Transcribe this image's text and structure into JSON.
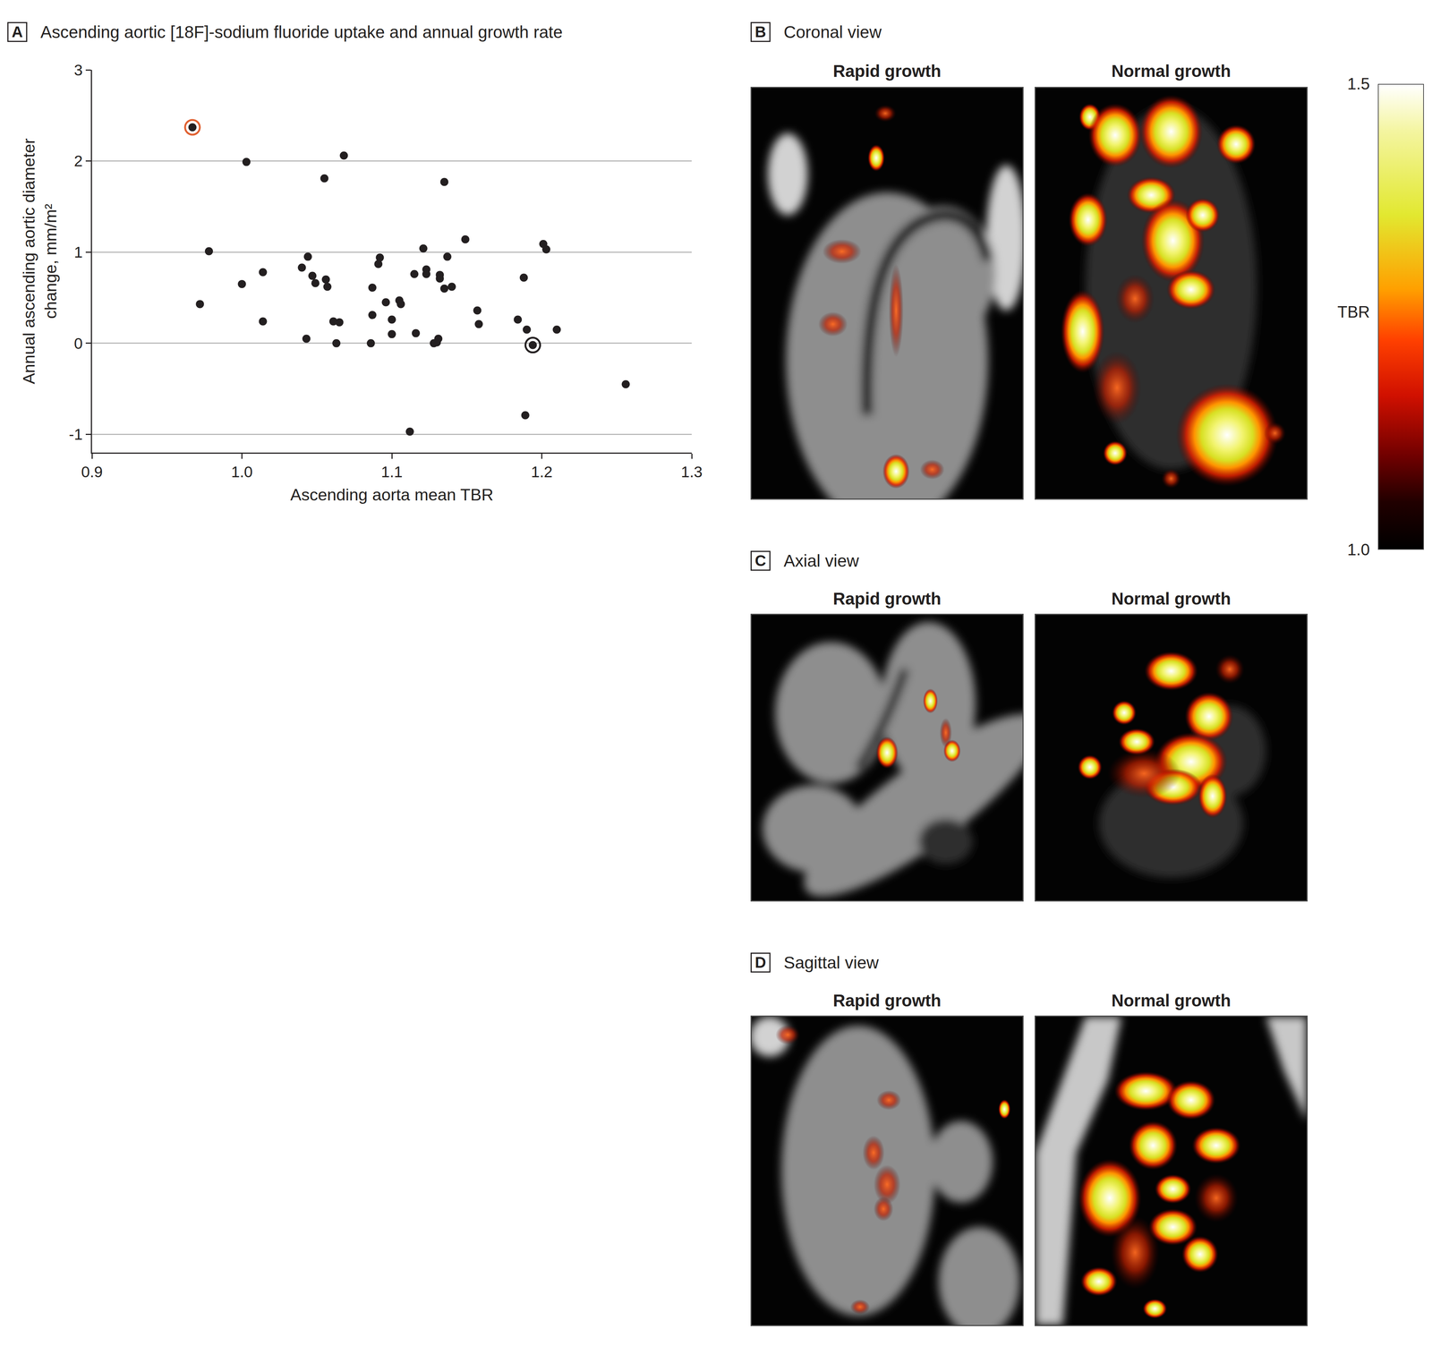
{
  "chart_data": {
    "type": "scatter",
    "panel": "A",
    "title": "Ascending aortic [18F]-sodium fluoride uptake and annual growth rate",
    "x_label": "Ascending aorta mean TBR",
    "y_label": "Annual ascending aortic diameter change, mm/m²",
    "series": [
      {
        "color": "#231f20",
        "marker": "circle",
        "x": [
          0.967,
          1.003,
          1.068,
          1.055,
          1.135,
          0.978,
          0.972,
          1.0,
          1.014,
          1.014,
          1.04,
          1.044,
          1.047,
          1.049,
          1.056,
          1.057,
          1.043,
          1.061,
          1.065,
          1.063,
          1.086,
          1.087,
          1.087,
          1.091,
          1.092,
          1.096,
          1.1,
          1.1,
          1.105,
          1.106,
          1.112,
          1.115,
          1.116,
          1.121,
          1.123,
          1.123,
          1.128,
          1.13,
          1.131,
          1.132,
          1.132,
          1.135,
          1.137,
          1.14,
          1.149,
          1.157,
          1.158,
          1.184,
          1.188,
          1.19,
          1.189,
          1.194,
          1.201,
          1.203,
          1.21,
          1.256
        ],
        "values": [
          2.37,
          1.99,
          2.06,
          1.81,
          1.77,
          1.01,
          0.43,
          0.65,
          0.78,
          0.24,
          0.83,
          0.95,
          0.74,
          0.66,
          0.7,
          0.62,
          0.05,
          0.24,
          0.23,
          0.0,
          0.0,
          0.31,
          0.61,
          0.87,
          0.94,
          0.45,
          0.26,
          0.1,
          0.47,
          0.43,
          -0.97,
          0.76,
          0.11,
          1.04,
          0.81,
          0.76,
          0.0,
          0.01,
          0.05,
          0.75,
          0.71,
          0.6,
          0.95,
          0.62,
          1.14,
          0.36,
          0.21,
          0.26,
          0.72,
          0.15,
          -0.79,
          -0.02,
          1.09,
          1.03,
          0.15,
          -0.45
        ]
      },
      {
        "color": "#e06030",
        "marker": "ring",
        "x": [
          0.967
        ],
        "values": [
          2.37
        ]
      },
      {
        "color": "#231f20",
        "marker": "ring",
        "x": [
          1.194
        ],
        "values": [
          -0.02
        ]
      }
    ],
    "xlim": [
      0.9,
      1.3
    ],
    "xticks": [
      0.9,
      {
        "value": 1.0,
        "label": "1.0"
      },
      1.1,
      1.2,
      1.3
    ],
    "ylim": [
      -1.2,
      3
    ],
    "yticks": [
      -1,
      0,
      1,
      2,
      3
    ],
    "grid": true
  },
  "image_panels": [
    {
      "letter": "B",
      "title": "Coronal view",
      "columns": [
        "Rapid growth",
        "Normal growth"
      ]
    },
    {
      "letter": "C",
      "title": "Axial view",
      "columns": [
        "Rapid growth",
        "Normal growth"
      ]
    },
    {
      "letter": "D",
      "title": "Sagittal view",
      "columns": [
        "Rapid growth",
        "Normal growth"
      ]
    }
  ],
  "colorbar": {
    "title": "TBR",
    "range": [
      1.0,
      1.5
    ],
    "ticks": [
      1.5,
      {
        "value": 1.0,
        "label": "1.0"
      }
    ]
  }
}
